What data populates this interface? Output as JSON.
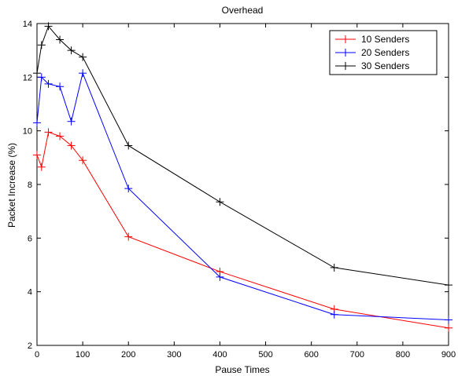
{
  "chart_data": {
    "type": "line",
    "title": "Overhead",
    "xlabel": "Pause Times",
    "ylabel": "Packet Increase (%)",
    "xlim": [
      0,
      900
    ],
    "ylim": [
      2,
      14
    ],
    "xticks": [
      0,
      100,
      200,
      300,
      400,
      500,
      600,
      700,
      800,
      900
    ],
    "yticks": [
      2,
      4,
      6,
      8,
      10,
      12,
      14
    ],
    "grid": false,
    "legend_position": "top-right",
    "x": [
      0,
      10,
      25,
      50,
      75,
      100,
      200,
      400,
      650,
      900
    ],
    "series": [
      {
        "name": "10 Senders",
        "color": "#ff0000",
        "values": [
          9.1,
          8.65,
          9.95,
          9.8,
          9.45,
          8.9,
          6.05,
          4.75,
          3.35,
          2.65
        ]
      },
      {
        "name": "20 Senders",
        "color": "#0000ff",
        "values": [
          10.3,
          12.0,
          11.75,
          11.65,
          10.35,
          12.15,
          7.85,
          4.55,
          3.15,
          2.95
        ]
      },
      {
        "name": "30 Senders",
        "color": "#000000",
        "values": [
          12.15,
          13.2,
          13.9,
          13.4,
          13.0,
          12.75,
          9.45,
          7.35,
          4.9,
          4.25
        ]
      }
    ]
  }
}
